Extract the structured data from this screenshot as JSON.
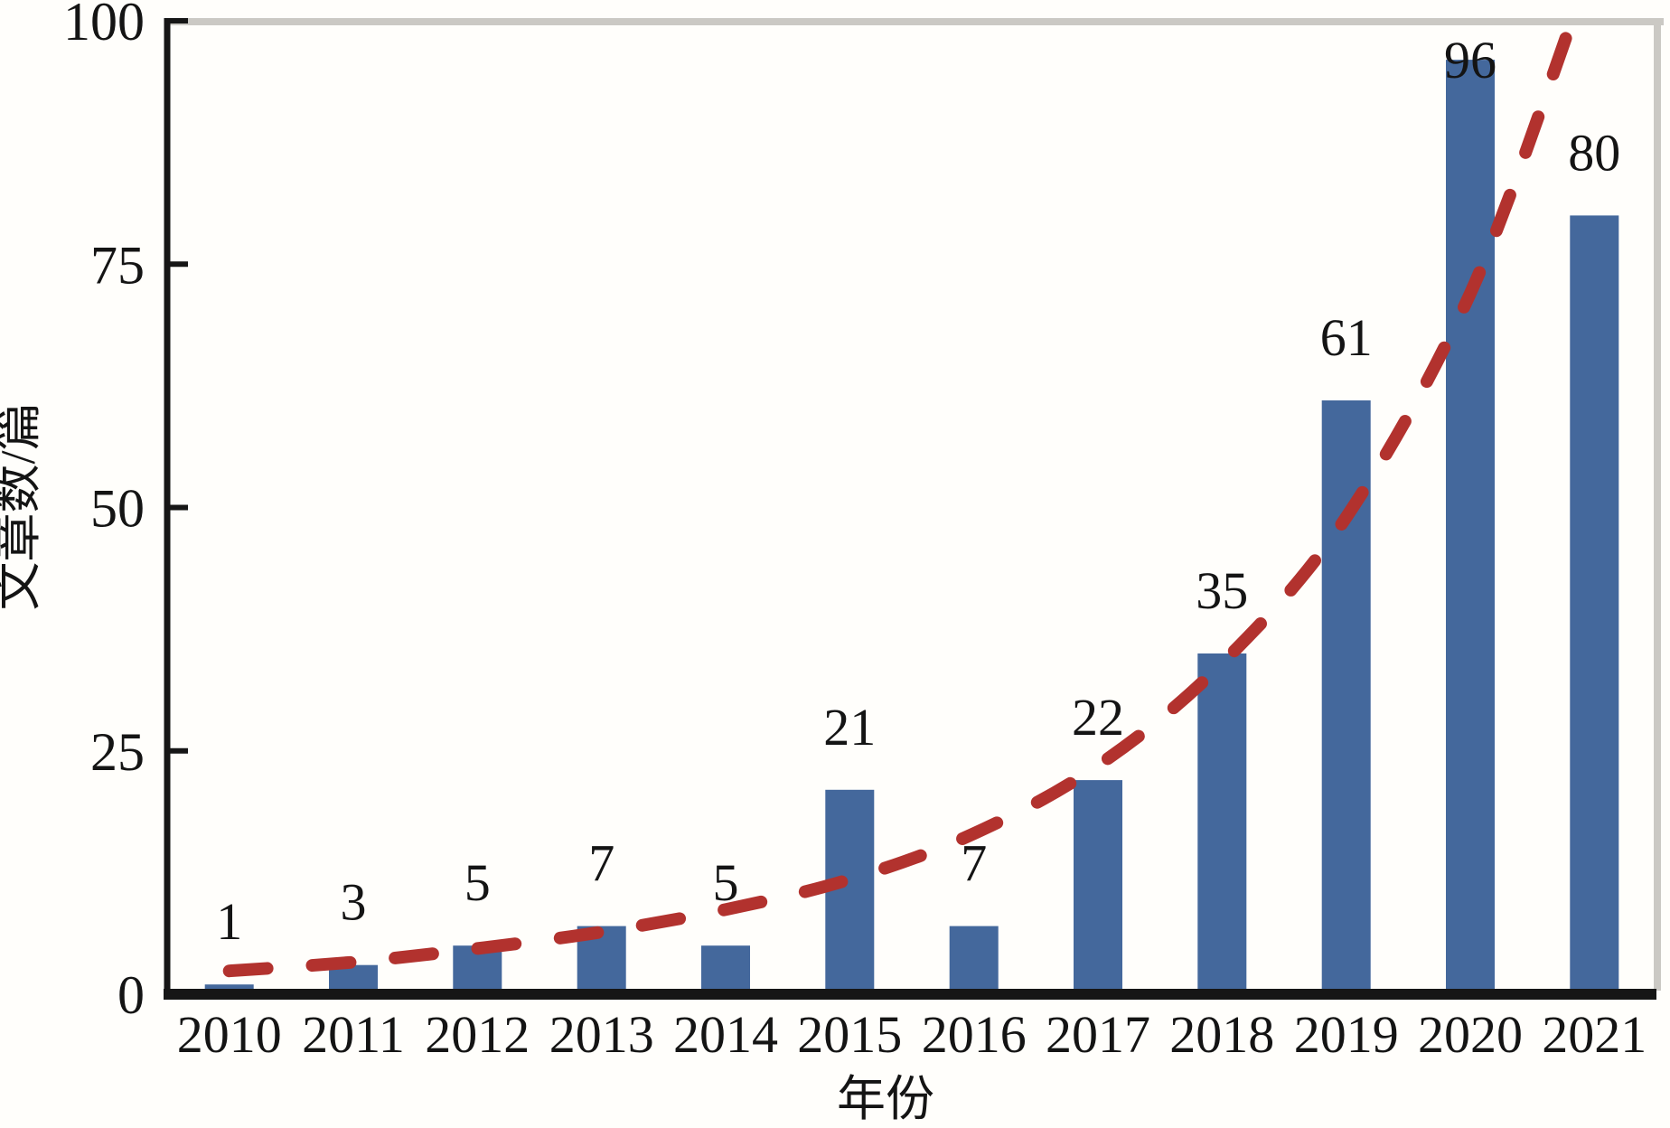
{
  "figure": {
    "background": "#FFFEFB"
  },
  "chart_data": {
    "type": "bar",
    "title": "",
    "xlabel": "年份",
    "ylabel": "文章数/篇",
    "categories": [
      "2010",
      "2011",
      "2012",
      "2013",
      "2014",
      "2015",
      "2016",
      "2017",
      "2018",
      "2019",
      "2020",
      "2021"
    ],
    "values": [
      1,
      3,
      5,
      7,
      5,
      21,
      7,
      22,
      35,
      61,
      96,
      80
    ],
    "bar_value_labels": [
      "1",
      "3",
      "5",
      "7",
      "5",
      "21",
      "7",
      "22",
      "35",
      "61",
      "96",
      "80"
    ],
    "ylim": [
      0,
      100
    ],
    "y_ticks": [
      0,
      25,
      50,
      75,
      100
    ],
    "grid": false,
    "legend_position": "none",
    "series": [
      {
        "name": "article-count-bars",
        "type": "bar",
        "color": "#44689C"
      },
      {
        "name": "exponential-trend-line",
        "type": "dashed-line",
        "color": "#B2322E",
        "points": [
          {
            "x": 0,
            "v": 2.4
          },
          {
            "x": 1,
            "v": 3.3
          },
          {
            "x": 2,
            "v": 4.7
          },
          {
            "x": 3,
            "v": 6.4
          },
          {
            "x": 4,
            "v": 8.7
          },
          {
            "x": 5,
            "v": 11.8
          },
          {
            "x": 6,
            "v": 16.5
          },
          {
            "x": 7,
            "v": 23.5
          },
          {
            "x": 8,
            "v": 34
          },
          {
            "x": 9,
            "v": 49
          },
          {
            "x": 10,
            "v": 72
          },
          {
            "x": 10.82,
            "v": 100
          }
        ]
      }
    ],
    "colors": {
      "bar": "#44689C",
      "trend": "#B2322E",
      "axis": "#161616",
      "border_gray": "#CBC9C4",
      "text": "#141414"
    }
  }
}
